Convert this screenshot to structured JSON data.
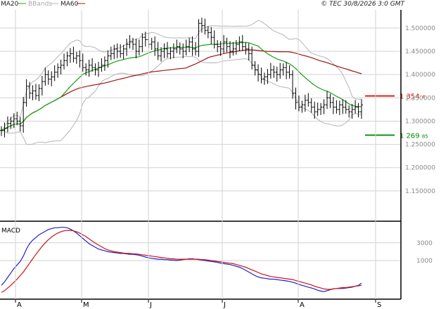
{
  "header": {
    "legend": [
      {
        "label": "MA20",
        "color": "#1aa01a"
      },
      {
        "label": "BBands",
        "color": "#b4b4b4"
      },
      {
        "label": "MA60",
        "color": "#a01414"
      }
    ],
    "copyright": "© TEC 30/8/2026 3:0 GMT"
  },
  "levels": [
    {
      "value": 1354,
      "label": "1 354",
      "label_suffix": "4",
      "color": "#e00000"
    },
    {
      "value": 1269.85,
      "label": "1 269",
      "label_suffix": "85",
      "color": "#008c00"
    }
  ],
  "colors": {
    "price": "#000000",
    "ma20": "#1aa01a",
    "ma60": "#a01414",
    "bbands": "#b4b4b4",
    "macd": "#2020c8",
    "signal": "#c81414",
    "grid": "#d2d2d2",
    "frame": "#000000"
  },
  "chart_data": [
    {
      "type": "ohlc",
      "panel": "price",
      "x_ticks": [
        "A",
        "M",
        "J",
        "J",
        "A",
        "S"
      ],
      "y_ticks": [
        1150,
        1200,
        1250,
        1300,
        1350,
        1400,
        1450,
        1500
      ],
      "y_tick_labels": [
        "1.150000",
        "1.200000",
        "1.250000",
        "1.300000",
        "1.350000",
        "1.400000",
        "1.450000",
        "1.500000"
      ],
      "ylim": [
        1100,
        1530
      ],
      "close": [
        1280,
        1285,
        1295,
        1300,
        1305,
        1300,
        1290,
        1340,
        1375,
        1360,
        1365,
        1355,
        1370,
        1385,
        1400,
        1390,
        1395,
        1405,
        1415,
        1420,
        1430,
        1440,
        1445,
        1435,
        1440,
        1430,
        1415,
        1410,
        1420,
        1415,
        1410,
        1415,
        1420,
        1430,
        1440,
        1445,
        1455,
        1450,
        1445,
        1455,
        1465,
        1470,
        1465,
        1450,
        1460,
        1480,
        1475,
        1465,
        1470,
        1455,
        1440,
        1450,
        1455,
        1445,
        1450,
        1455,
        1460,
        1455,
        1450,
        1460,
        1470,
        1455,
        1450,
        1510,
        1505,
        1495,
        1490,
        1480,
        1465,
        1460,
        1455,
        1470,
        1460,
        1450,
        1455,
        1465,
        1470,
        1460,
        1455,
        1445,
        1420,
        1410,
        1400,
        1390,
        1395,
        1400,
        1410,
        1405,
        1400,
        1410,
        1415,
        1405,
        1400,
        1360,
        1340,
        1330,
        1335,
        1345,
        1340,
        1330,
        1320,
        1325,
        1330,
        1335,
        1350,
        1340,
        1330,
        1325,
        1335,
        1330,
        1325,
        1320,
        1325,
        1330,
        1320,
        1335
      ]
    },
    {
      "type": "line",
      "panel": "macd",
      "y_ticks": [
        1000,
        3000
      ],
      "y_tick_labels": [
        "1000",
        "3000"
      ],
      "ylim": [
        -3200,
        5200
      ],
      "series": [
        {
          "name": "MACD",
          "values": [
            -1800,
            -1400,
            -900,
            -400,
            100,
            500,
            900,
            1500,
            2300,
            2900,
            3300,
            3600,
            3900,
            4100,
            4300,
            4500,
            4600,
            4700,
            4700,
            4750,
            4750,
            4700,
            4550,
            4350,
            4100,
            3800,
            3500,
            3200,
            2900,
            2700,
            2500,
            2300,
            2200,
            2100,
            2000,
            1950,
            1900,
            1850,
            1800,
            1800,
            1750,
            1700,
            1700,
            1650,
            1600,
            1500,
            1400,
            1300,
            1250,
            1200,
            1150,
            1150,
            1100,
            1100,
            1050,
            1050,
            1000,
            1050,
            1100,
            1150,
            1200,
            1200,
            1150,
            1100,
            1050,
            1000,
            950,
            900,
            850,
            800,
            700,
            650,
            600,
            550,
            450,
            350,
            250,
            100,
            -100,
            -300,
            -500,
            -700,
            -850,
            -950,
            -1000,
            -1050,
            -1100,
            -1100,
            -1150,
            -1200,
            -1250,
            -1300,
            -1350,
            -1450,
            -1550,
            -1700,
            -1800,
            -1900,
            -2000,
            -2100,
            -2200,
            -2350,
            -2450,
            -2500,
            -2400,
            -2300,
            -2200,
            -2150,
            -2150,
            -2150,
            -2100,
            -2050,
            -2000,
            -1900,
            -1800,
            -1550
          ]
        },
        {
          "name": "Signal",
          "values": [
            -2600,
            -2400,
            -2100,
            -1800,
            -1450,
            -1100,
            -700,
            -300,
            200,
            700,
            1200,
            1700,
            2150,
            2600,
            3000,
            3350,
            3650,
            3900,
            4100,
            4250,
            4350,
            4400,
            4400,
            4350,
            4250,
            4100,
            3900,
            3700,
            3450,
            3200,
            2950,
            2750,
            2550,
            2350,
            2200,
            2100,
            2000,
            1950,
            1900,
            1850,
            1800,
            1800,
            1750,
            1750,
            1700,
            1650,
            1600,
            1550,
            1500,
            1450,
            1400,
            1350,
            1300,
            1250,
            1200,
            1200,
            1150,
            1150,
            1150,
            1150,
            1150,
            1150,
            1150,
            1150,
            1100,
            1100,
            1050,
            1000,
            950,
            900,
            850,
            800,
            750,
            700,
            650,
            550,
            450,
            350,
            250,
            100,
            -50,
            -200,
            -350,
            -500,
            -600,
            -700,
            -800,
            -850,
            -900,
            -950,
            -1000,
            -1050,
            -1100,
            -1150,
            -1250,
            -1350,
            -1450,
            -1550,
            -1650,
            -1750,
            -1900,
            -2000,
            -2100,
            -2200,
            -2250,
            -2250,
            -2200,
            -2150,
            -2100,
            -2050,
            -2050,
            -2000,
            -1950,
            -1900,
            -1850,
            -1800
          ]
        }
      ]
    }
  ]
}
